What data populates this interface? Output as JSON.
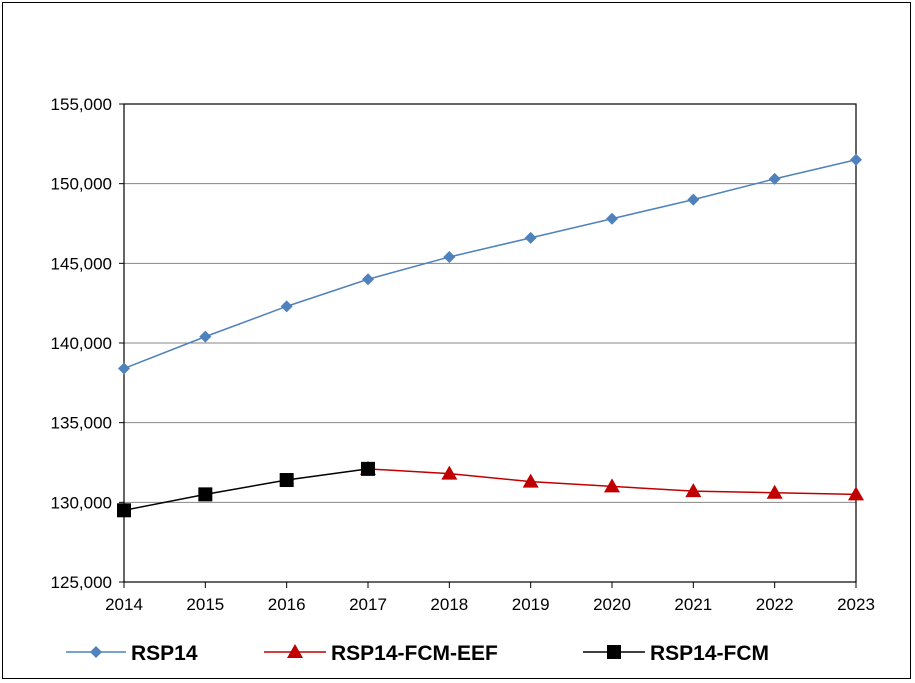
{
  "chart_data": {
    "type": "line",
    "title": "",
    "xlabel": "",
    "ylabel": "",
    "x": [
      "2014",
      "2015",
      "2016",
      "2017",
      "2018",
      "2019",
      "2020",
      "2021",
      "2022",
      "2023"
    ],
    "ylim": [
      125000,
      155000
    ],
    "yticks": [
      125000,
      130000,
      135000,
      140000,
      145000,
      150000,
      155000
    ],
    "ytick_labels": [
      "125,000",
      "130,000",
      "135,000",
      "140,000",
      "145,000",
      "150,000",
      "155,000"
    ],
    "grid": "horizontal",
    "legend": "bottom",
    "series": [
      {
        "name": "RSP14",
        "color": "#4f81bd",
        "marker": "diamond",
        "values": [
          138400,
          140400,
          142300,
          144000,
          145400,
          146600,
          147800,
          149000,
          150300,
          151500
        ]
      },
      {
        "name": "RSP14-FCM-EEF",
        "color": "#c00000",
        "marker": "triangle",
        "values": [
          null,
          null,
          null,
          132100,
          131800,
          131300,
          131000,
          130700,
          130600,
          130500
        ]
      },
      {
        "name": "RSP14-FCM",
        "color": "#000000",
        "marker": "square",
        "values": [
          129500,
          130500,
          131400,
          132100,
          null,
          null,
          null,
          null,
          null,
          null
        ]
      }
    ]
  }
}
